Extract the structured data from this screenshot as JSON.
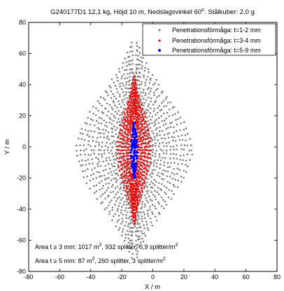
{
  "chart_data": {
    "type": "scatter",
    "title_main": "G240177D1 12,1 kg, Höjd 10 m, Nedslagsvinkel 60",
    "title_sup": "o",
    "title_tail": ". Stålkuber: 2,0 g",
    "xlabel": "X / m",
    "ylabel": "Y / m",
    "xlim": [
      -80,
      80
    ],
    "ylim": [
      -80,
      80
    ],
    "xticks": [
      "-80",
      "-60",
      "-40",
      "-20",
      "0",
      "20",
      "40",
      "60",
      "80"
    ],
    "yticks": [
      "80",
      "60",
      "40",
      "20",
      "0",
      "-20",
      "-40",
      "-60",
      "-80"
    ],
    "grid": false,
    "legend_position": "top-right",
    "series": [
      {
        "name": "Penetrationsförmåga: t=1-2 mm",
        "color": "#808080"
      },
      {
        "name": "Penetrationsförmåga: t=3-4 mm",
        "color": "#ff0000"
      },
      {
        "name": "Penetrationsförmåga: t=5-9 mm",
        "color": "#0000ff"
      }
    ],
    "annotations": [
      {
        "pre": "Area t ≥ 3 mm: 1017 m",
        "sup1": "2",
        "mid": ", 932 splitter, 0,9 splitter/m",
        "sup2": "2"
      },
      {
        "pre": "Area t ≥ 5 mm: 87 m",
        "sup1": "2",
        "mid": ", 260 splitter, 3 splitter/m",
        "sup2": "2"
      }
    ]
  }
}
